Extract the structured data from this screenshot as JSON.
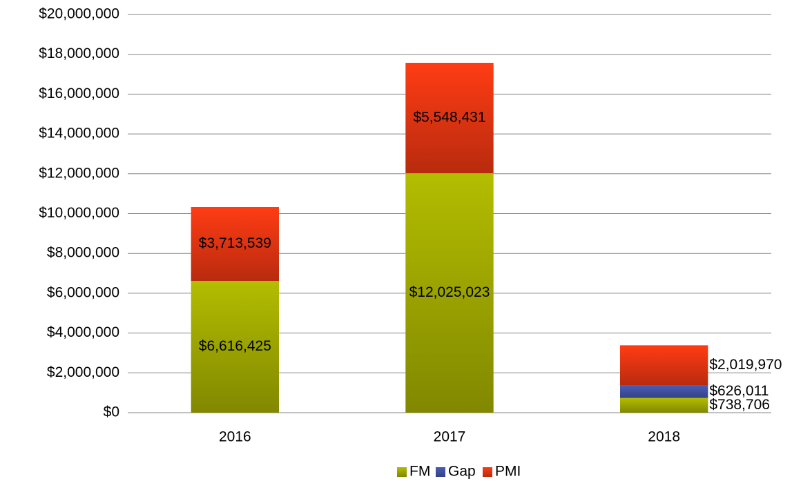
{
  "chart_data": {
    "type": "stacked_bar",
    "categories": [
      "2016",
      "2017",
      "2018"
    ],
    "series": [
      {
        "name": "FM",
        "color": "#b3bd00",
        "values": [
          6616425,
          12025023,
          738706
        ],
        "value_labels": [
          "$6,616,425",
          "$12,025,023",
          "$738,706"
        ]
      },
      {
        "name": "Gap",
        "color": "#4a5cb8",
        "values": [
          null,
          null,
          626011
        ],
        "value_labels": [
          null,
          null,
          "$626,011"
        ]
      },
      {
        "name": "PMI",
        "color": "#ff3c14",
        "values": [
          3713539,
          5548431,
          2019970
        ],
        "value_labels": [
          "$3,713,539",
          "$5,548,431",
          "$2,019,970"
        ]
      }
    ],
    "ylim": [
      0,
      20000000
    ],
    "yticks": [
      {
        "value": 0,
        "label": "$0"
      },
      {
        "value": 2000000,
        "label": "$2,000,000"
      },
      {
        "value": 4000000,
        "label": "$4,000,000"
      },
      {
        "value": 6000000,
        "label": "$6,000,000"
      },
      {
        "value": 8000000,
        "label": "$8,000,000"
      },
      {
        "value": 10000000,
        "label": "$10,000,000"
      },
      {
        "value": 12000000,
        "label": "$12,000,000"
      },
      {
        "value": 14000000,
        "label": "$14,000,000"
      },
      {
        "value": 16000000,
        "label": "$16,000,000"
      },
      {
        "value": 18000000,
        "label": "$18,000,000"
      },
      {
        "value": 20000000,
        "label": "$20,000,000"
      }
    ],
    "grid": true,
    "legend": "bottom"
  }
}
